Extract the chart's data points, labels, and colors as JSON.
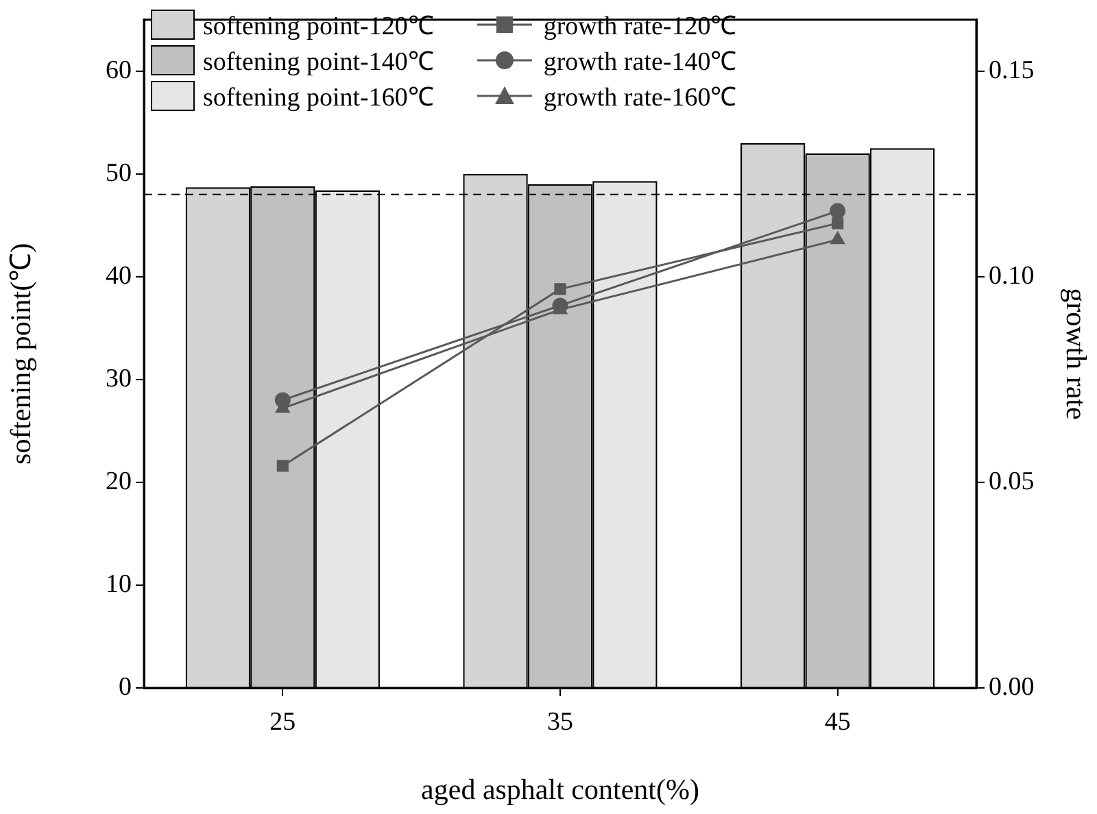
{
  "chart_data": {
    "type": "bar",
    "xlabel": "aged asphalt content(%)",
    "ylabel": "softening point(℃)",
    "y2label": "growth rate",
    "categories": [
      "25",
      "35",
      "45"
    ],
    "series": [
      {
        "name": "softening point-120℃",
        "color": "#d4d4d4",
        "values": [
          48.7,
          50.0,
          53.0
        ]
      },
      {
        "name": "softening point-140℃",
        "color": "#c0c0c0",
        "values": [
          48.8,
          49.0,
          52.0
        ]
      },
      {
        "name": "softening point-160℃",
        "color": "#e6e6e6",
        "values": [
          48.4,
          49.3,
          52.5
        ]
      },
      {
        "name": "growth rate-120℃",
        "type": "line",
        "axis": "y2",
        "marker": "square",
        "color": "#595959",
        "values": [
          0.054,
          0.097,
          0.113
        ]
      },
      {
        "name": "growth rate-140℃",
        "type": "line",
        "axis": "y2",
        "marker": "circle",
        "color": "#595959",
        "values": [
          0.07,
          0.093,
          0.116
        ]
      },
      {
        "name": "growth rate-160℃",
        "type": "line",
        "axis": "y2",
        "marker": "triangle",
        "color": "#595959",
        "values": [
          0.068,
          0.092,
          0.109
        ]
      }
    ],
    "ylim": [
      0,
      65
    ],
    "yticks": [
      0,
      10,
      20,
      30,
      40,
      50,
      60
    ],
    "y2lim": [
      0,
      0.1625
    ],
    "y2ticks": [
      {
        "value": 0,
        "label": "0.00"
      },
      {
        "value": 0.05,
        "label": "0.05"
      },
      {
        "value": 0.1,
        "label": "0.10"
      },
      {
        "value": 0.15,
        "label": "0.15"
      }
    ],
    "ref_lines": [
      {
        "axis": "y",
        "value": 48,
        "color": "#000000",
        "line_style": "dashed"
      }
    ],
    "grid": false,
    "legend": "top",
    "line_style": "solid"
  }
}
